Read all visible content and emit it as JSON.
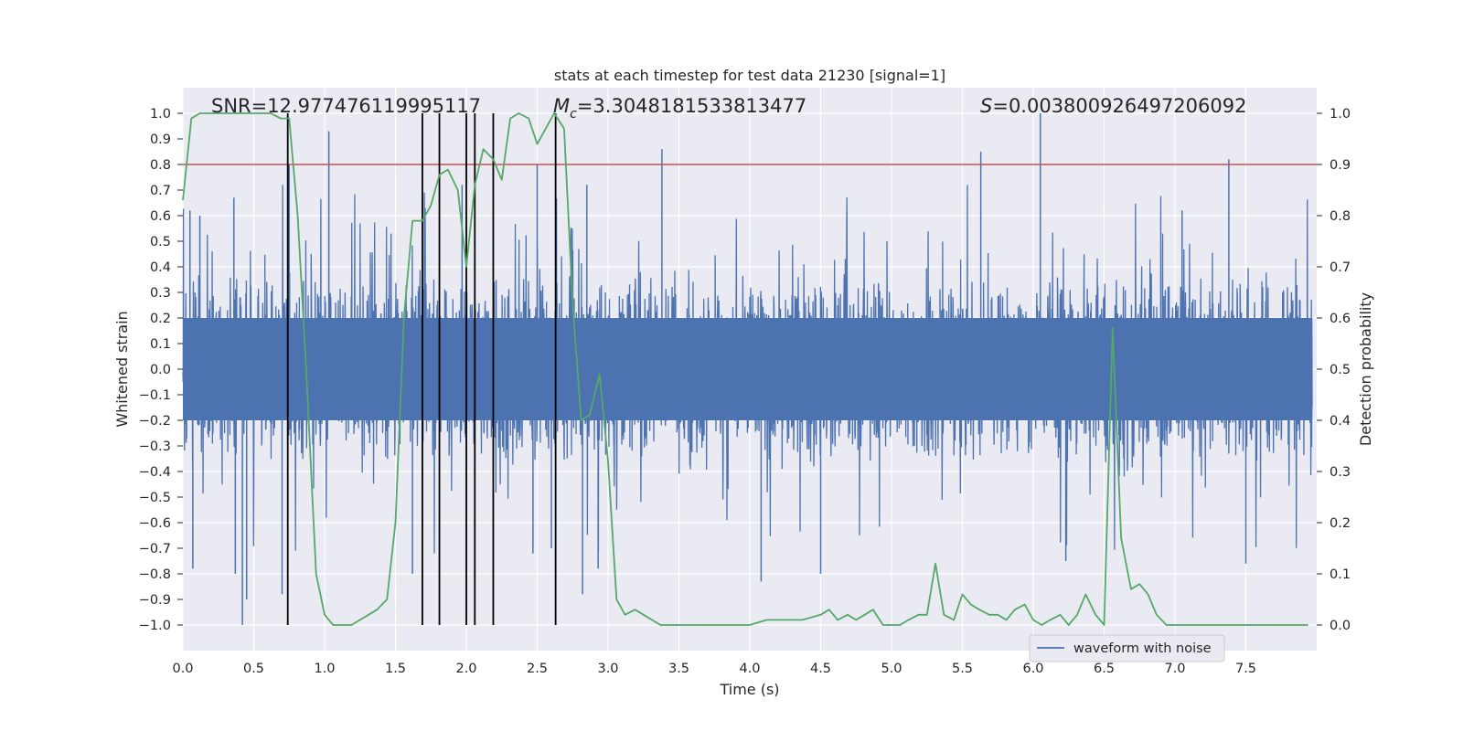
{
  "chart_data": {
    "type": "line",
    "title": "stats at each timestep for test data 21230 [signal=1]",
    "xlabel": "Time (s)",
    "ylabel": "Whitened strain",
    "y2label": "Detection probability",
    "xlim": [
      0,
      8
    ],
    "ylim": [
      -1.1,
      1.1
    ],
    "y2lim": [
      -0.05,
      1.05
    ],
    "x_ticks": [
      "0.0",
      "0.5",
      "1.0",
      "1.5",
      "2.0",
      "2.5",
      "3.0",
      "3.5",
      "4.0",
      "4.5",
      "5.0",
      "5.5",
      "6.0",
      "6.5",
      "7.0",
      "7.5"
    ],
    "y_ticks": [
      "1.0",
      "0.9",
      "0.8",
      "0.7",
      "0.6",
      "0.5",
      "0.4",
      "0.3",
      "0.2",
      "0.1",
      "0.0",
      "−0.1",
      "−0.2",
      "−0.3",
      "−0.4",
      "−0.5",
      "−0.6",
      "−0.7",
      "−0.8",
      "−0.9",
      "−1.0"
    ],
    "y2_ticks": [
      "1.0",
      "0.9",
      "0.8",
      "0.7",
      "0.6",
      "0.5",
      "0.4",
      "0.3",
      "0.2",
      "0.1",
      "0.0"
    ],
    "annotations": {
      "snr": "SNR=12.977476119995117",
      "mc_symbol": "M",
      "mc_sub": "c",
      "mc_value": "=3.3048181533813477",
      "s_symbol": "S",
      "s_value": "=0.003800926497206092"
    },
    "threshold": {
      "value": 0.8,
      "axis": "left",
      "color": "#c44e52"
    },
    "vlines": {
      "x": [
        0.74,
        1.69,
        1.81,
        2.0,
        2.06,
        2.19,
        2.63
      ],
      "y_range": [
        -1.0,
        1.0
      ],
      "color": "#000000"
    },
    "legend": {
      "entries": [
        "waveform with noise"
      ],
      "location": "lower center-right"
    },
    "waveform": {
      "name": "waveform with noise",
      "color": "#4c72b0",
      "note": "dense noisy strain, ~0.3 amplitude with spikes",
      "spikes": [
        {
          "x": 0.05,
          "y": 0.62
        },
        {
          "x": 0.07,
          "y": -0.78
        },
        {
          "x": 0.12,
          "y": 0.6
        },
        {
          "x": 0.36,
          "y": 0.67
        },
        {
          "x": 0.37,
          "y": -0.8
        },
        {
          "x": 0.42,
          "y": -1.0
        },
        {
          "x": 0.45,
          "y": -0.9
        },
        {
          "x": 0.7,
          "y": -0.88
        },
        {
          "x": 0.75,
          "y": 0.8
        },
        {
          "x": 1.03,
          "y": 0.93
        },
        {
          "x": 1.62,
          "y": -0.8
        },
        {
          "x": 1.97,
          "y": 0.72
        },
        {
          "x": 2.47,
          "y": -0.72
        },
        {
          "x": 2.5,
          "y": 0.8
        },
        {
          "x": 2.6,
          "y": -0.7
        },
        {
          "x": 2.82,
          "y": -0.88
        },
        {
          "x": 2.85,
          "y": 0.72
        },
        {
          "x": 2.93,
          "y": -0.78
        },
        {
          "x": 3.38,
          "y": 0.86
        },
        {
          "x": 4.08,
          "y": -0.83
        },
        {
          "x": 4.5,
          "y": -0.8
        },
        {
          "x": 5.63,
          "y": 0.85
        },
        {
          "x": 6.05,
          "y": 1.0
        },
        {
          "x": 6.23,
          "y": -0.75
        },
        {
          "x": 7.05,
          "y": 0.62
        },
        {
          "x": 7.38,
          "y": 0.82
        },
        {
          "x": 7.5,
          "y": -0.76
        }
      ]
    },
    "detection_probability": {
      "name": "detection probability",
      "color": "#55a868",
      "x": [
        0.0,
        0.06,
        0.12,
        0.19,
        0.25,
        0.31,
        0.37,
        0.44,
        0.5,
        0.56,
        0.62,
        0.69,
        0.75,
        0.81,
        0.87,
        0.94,
        1.0,
        1.06,
        1.12,
        1.19,
        1.25,
        1.31,
        1.37,
        1.44,
        1.5,
        1.56,
        1.62,
        1.69,
        1.75,
        1.81,
        1.87,
        1.94,
        2.0,
        2.06,
        2.12,
        2.19,
        2.25,
        2.31,
        2.37,
        2.44,
        2.5,
        2.56,
        2.62,
        2.69,
        2.75,
        2.81,
        2.87,
        2.94,
        3.0,
        3.06,
        3.12,
        3.19,
        3.25,
        3.31,
        3.37,
        3.5,
        3.75,
        4.0,
        4.12,
        4.25,
        4.37,
        4.5,
        4.56,
        4.62,
        4.69,
        4.75,
        4.81,
        4.87,
        4.94,
        5.0,
        5.06,
        5.12,
        5.19,
        5.25,
        5.31,
        5.37,
        5.44,
        5.5,
        5.56,
        5.62,
        5.69,
        5.75,
        5.81,
        5.87,
        5.94,
        6.0,
        6.06,
        6.12,
        6.19,
        6.25,
        6.31,
        6.37,
        6.44,
        6.5,
        6.56,
        6.62,
        6.69,
        6.75,
        6.81,
        6.87,
        6.94,
        7.0,
        7.25,
        7.5,
        7.75,
        7.94
      ],
      "values": [
        0.83,
        0.99,
        1.0,
        1.0,
        1.0,
        1.0,
        1.0,
        1.0,
        1.0,
        1.0,
        1.0,
        0.99,
        0.99,
        0.8,
        0.5,
        0.1,
        0.02,
        0.0,
        0.0,
        0.0,
        0.01,
        0.02,
        0.03,
        0.05,
        0.2,
        0.6,
        0.79,
        0.79,
        0.82,
        0.88,
        0.89,
        0.85,
        0.7,
        0.86,
        0.93,
        0.91,
        0.87,
        0.99,
        1.0,
        0.99,
        0.94,
        0.97,
        1.0,
        0.97,
        0.63,
        0.4,
        0.41,
        0.49,
        0.32,
        0.05,
        0.02,
        0.03,
        0.02,
        0.01,
        0.0,
        0.0,
        0.0,
        0.0,
        0.01,
        0.01,
        0.01,
        0.02,
        0.03,
        0.01,
        0.02,
        0.01,
        0.02,
        0.03,
        0.0,
        0.0,
        0.0,
        0.01,
        0.02,
        0.02,
        0.12,
        0.02,
        0.01,
        0.06,
        0.04,
        0.03,
        0.02,
        0.02,
        0.01,
        0.03,
        0.04,
        0.01,
        0.0,
        0.01,
        0.02,
        0.0,
        0.02,
        0.06,
        0.02,
        0.0,
        0.58,
        0.17,
        0.07,
        0.08,
        0.06,
        0.02,
        0.0,
        0.0,
        0.0,
        0.0,
        0.0,
        0.0
      ],
      "axis": "right"
    }
  }
}
